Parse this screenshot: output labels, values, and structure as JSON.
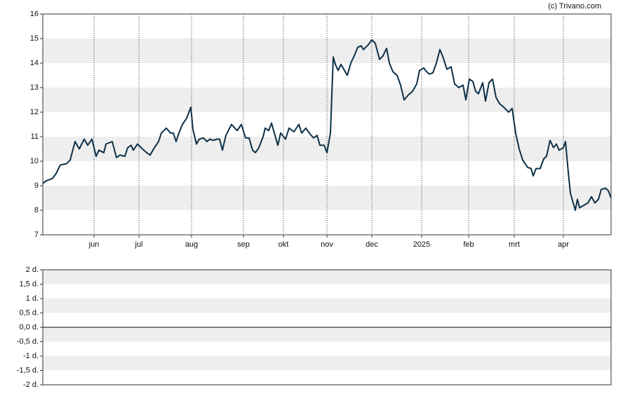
{
  "chart_data": [
    {
      "type": "line",
      "credit": "(c) Trivano.com",
      "x": [
        0,
        5,
        14,
        19,
        25,
        34,
        39,
        46,
        52,
        59,
        64,
        70,
        76,
        80,
        87,
        90,
        99,
        105,
        110,
        117,
        121,
        126,
        129,
        135,
        142,
        148,
        153,
        159,
        165,
        169,
        176,
        182,
        186,
        190,
        194,
        199,
        205,
        211,
        214,
        219,
        223,
        229,
        234,
        238,
        243,
        248,
        252,
        256,
        261,
        269,
        277,
        283,
        289,
        294,
        299,
        303,
        308,
        314,
        317,
        322,
        326,
        330,
        335,
        339,
        346,
        351,
        358,
        365,
        369,
        375,
        381,
        386,
        391,
        395,
        401,
        405,
        410,
        414,
        417,
        421,
        425,
        434,
        439,
        444,
        449,
        454,
        457,
        464,
        469,
        474,
        480,
        485,
        490,
        494,
        499,
        505,
        510,
        515,
        521,
        527,
        533,
        537,
        543,
        547,
        551,
        556,
        561,
        566,
        571,
        576,
        582,
        587,
        593,
        599,
        603,
        608,
        613,
        617,
        621,
        627,
        631,
        636,
        641,
        646,
        651,
        657,
        664,
        669,
        674,
        679,
        684,
        691,
        696,
        699,
        703,
        709,
        714,
        718,
        723,
        728,
        732,
        736,
        742,
        745,
        749,
        752,
        756,
        759,
        762,
        765,
        771,
        777,
        782,
        787,
        792,
        796,
        802,
        806,
        810
      ],
      "series": [
        {
          "color": "#0d3048",
          "values": [
            9.1,
            9.2,
            9.3,
            9.5,
            9.85,
            9.9,
            10.05,
            10.8,
            10.5,
            10.9,
            10.65,
            10.9,
            10.2,
            10.45,
            10.35,
            10.7,
            10.8,
            10.15,
            10.25,
            10.2,
            10.55,
            10.65,
            10.45,
            10.7,
            10.5,
            10.35,
            10.25,
            10.55,
            10.8,
            11.15,
            11.35,
            11.15,
            11.15,
            10.8,
            11.15,
            11.5,
            11.75,
            12.2,
            11.3,
            10.7,
            10.9,
            10.95,
            10.8,
            10.9,
            10.85,
            10.9,
            10.9,
            10.45,
            11.05,
            11.5,
            11.25,
            11.5,
            10.95,
            10.95,
            10.45,
            10.35,
            10.55,
            11.0,
            11.35,
            11.25,
            11.55,
            11.15,
            10.65,
            11.15,
            10.9,
            11.35,
            11.2,
            11.5,
            11.15,
            11.35,
            11.1,
            10.95,
            11.05,
            10.65,
            10.65,
            10.35,
            11.15,
            14.25,
            13.95,
            13.7,
            13.95,
            13.5,
            14.0,
            14.3,
            14.65,
            14.7,
            14.55,
            14.75,
            14.95,
            14.8,
            14.15,
            14.3,
            14.6,
            14.0,
            13.65,
            13.5,
            13.1,
            12.5,
            12.7,
            12.85,
            13.15,
            13.7,
            13.8,
            13.65,
            13.55,
            13.6,
            14.0,
            14.55,
            14.2,
            13.75,
            13.85,
            13.15,
            13.0,
            13.1,
            12.5,
            13.35,
            13.25,
            12.85,
            12.75,
            13.2,
            12.45,
            13.2,
            13.35,
            12.6,
            12.35,
            12.2,
            12.0,
            12.15,
            11.15,
            10.5,
            10.05,
            9.75,
            9.7,
            9.4,
            9.7,
            9.7,
            10.1,
            10.2,
            10.85,
            10.55,
            10.7,
            10.45,
            10.55,
            10.8,
            9.55,
            8.7,
            8.3,
            8.0,
            8.45,
            8.1,
            8.2,
            8.3,
            8.55,
            8.3,
            8.45,
            8.85,
            8.9,
            8.8,
            8.5
          ]
        }
      ],
      "xlim": [
        0,
        810
      ],
      "xticks": [
        {
          "value": 73,
          "label": "jun"
        },
        {
          "value": 137,
          "label": "jul"
        },
        {
          "value": 212,
          "label": "aug"
        },
        {
          "value": 286,
          "label": "sep"
        },
        {
          "value": 343,
          "label": "okt"
        },
        {
          "value": 405,
          "label": "nov"
        },
        {
          "value": 469,
          "label": "dec"
        },
        {
          "value": 540,
          "label": "2025"
        },
        {
          "value": 607,
          "label": "feb"
        },
        {
          "value": 672,
          "label": "mrt"
        },
        {
          "value": 742,
          "label": "apr"
        }
      ],
      "ylim": [
        7,
        16
      ],
      "yticks": [
        7,
        8,
        9,
        10,
        11,
        12,
        13,
        14,
        15,
        16
      ],
      "grid": true
    },
    {
      "type": "bar",
      "ylim": [
        -2,
        2
      ],
      "yticks": [
        {
          "value": -2,
          "label": "-2 d."
        },
        {
          "value": -1.5,
          "label": "-1,5 d."
        },
        {
          "value": -1,
          "label": "-1 d."
        },
        {
          "value": -0.5,
          "label": "-0,5 d."
        },
        {
          "value": 0,
          "label": "0,0 d."
        },
        {
          "value": 0.5,
          "label": "0,5 d."
        },
        {
          "value": 1,
          "label": "1 d."
        },
        {
          "value": 1.5,
          "label": "1,5 d."
        },
        {
          "value": 2,
          "label": "2 d."
        }
      ],
      "grid": true
    }
  ]
}
